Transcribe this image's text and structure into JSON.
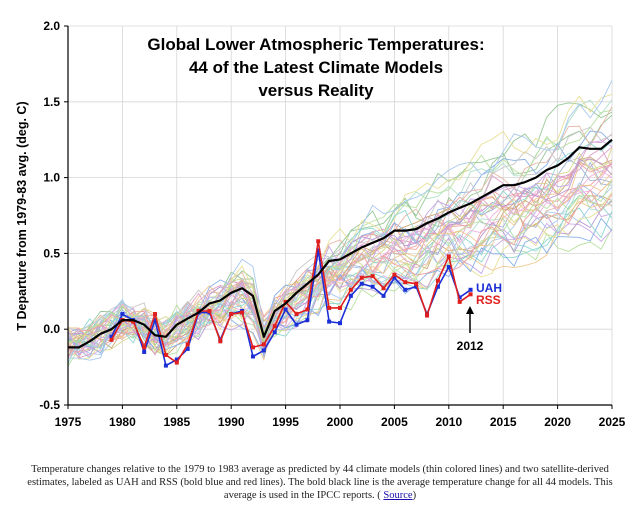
{
  "chart_data": {
    "type": "line",
    "title": [
      "Global Lower Atmospheric Temperatures:",
      "44 of the Latest Climate Models",
      "versus Reality"
    ],
    "ylabel": "T Departure from 1979-83 avg. (deg. C)",
    "xlim": [
      1975,
      2025
    ],
    "ylim": [
      -0.5,
      2.0
    ],
    "x_ticks": [
      "1975",
      "1980",
      "1985",
      "1990",
      "1995",
      "2000",
      "2005",
      "2010",
      "2015",
      "2020",
      "2025"
    ],
    "y_ticks": [
      "-0.5",
      "0.0",
      "0.5",
      "1.0",
      "1.5",
      "2.0"
    ],
    "grid": true,
    "colors": {
      "uah": "#1c2fd6",
      "rss": "#e01e1e",
      "mean": "#000000",
      "axis": "#000000"
    },
    "series": [
      {
        "name": "UAH",
        "color": "#1c2fd6",
        "x": [
          1979,
          1980,
          1981,
          1982,
          1983,
          1984,
          1985,
          1986,
          1987,
          1988,
          1989,
          1990,
          1991,
          1992,
          1993,
          1994,
          1995,
          1996,
          1997,
          1998,
          1999,
          2000,
          2001,
          2002,
          2003,
          2004,
          2005,
          2006,
          2007,
          2008,
          2009,
          2010,
          2011,
          2012
        ],
        "values": [
          -0.05,
          0.1,
          0.06,
          -0.15,
          0.06,
          -0.24,
          -0.2,
          -0.13,
          0.11,
          0.11,
          -0.07,
          0.1,
          0.12,
          -0.18,
          -0.14,
          -0.02,
          0.13,
          0.03,
          0.06,
          0.52,
          0.05,
          0.04,
          0.22,
          0.3,
          0.28,
          0.22,
          0.34,
          0.26,
          0.28,
          0.1,
          0.28,
          0.41,
          0.21,
          0.26
        ]
      },
      {
        "name": "RSS",
        "color": "#e01e1e",
        "x": [
          1979,
          1980,
          1981,
          1982,
          1983,
          1984,
          1985,
          1986,
          1987,
          1988,
          1989,
          1990,
          1991,
          1992,
          1993,
          1994,
          1995,
          1996,
          1997,
          1998,
          1999,
          2000,
          2001,
          2002,
          2003,
          2004,
          2005,
          2006,
          2007,
          2008,
          2009,
          2010,
          2011,
          2012
        ],
        "values": [
          -0.07,
          0.06,
          0.05,
          -0.12,
          0.1,
          -0.17,
          -0.22,
          -0.1,
          0.12,
          0.12,
          -0.08,
          0.1,
          0.11,
          -0.12,
          -0.1,
          0.02,
          0.18,
          0.1,
          0.13,
          0.58,
          0.14,
          0.14,
          0.26,
          0.34,
          0.35,
          0.27,
          0.36,
          0.31,
          0.3,
          0.09,
          0.32,
          0.48,
          0.18,
          0.23
        ]
      },
      {
        "name": "Mean",
        "color": "#000000",
        "x": [
          1975,
          1976,
          1977,
          1978,
          1979,
          1980,
          1981,
          1982,
          1983,
          1984,
          1985,
          1986,
          1987,
          1988,
          1989,
          1990,
          1991,
          1992,
          1993,
          1994,
          1995,
          1996,
          1997,
          1998,
          1999,
          2000,
          2001,
          2002,
          2003,
          2004,
          2005,
          2006,
          2007,
          2008,
          2009,
          2010,
          2011,
          2012,
          2013,
          2014,
          2015,
          2016,
          2017,
          2018,
          2019,
          2020,
          2021,
          2022,
          2023,
          2024,
          2025
        ],
        "values": [
          -0.12,
          -0.12,
          -0.08,
          -0.03,
          0.0,
          0.06,
          0.06,
          0.03,
          -0.04,
          -0.05,
          0.03,
          0.07,
          0.11,
          0.17,
          0.19,
          0.24,
          0.27,
          0.22,
          -0.05,
          0.12,
          0.17,
          0.24,
          0.3,
          0.36,
          0.45,
          0.46,
          0.5,
          0.54,
          0.57,
          0.6,
          0.65,
          0.65,
          0.66,
          0.7,
          0.73,
          0.77,
          0.8,
          0.83,
          0.87,
          0.91,
          0.95,
          0.95,
          0.97,
          1.0,
          1.05,
          1.08,
          1.13,
          1.2,
          1.19,
          1.19,
          1.25
        ]
      }
    ],
    "annotations": [
      {
        "text": "UAH",
        "color": "#1c2fd6"
      },
      {
        "text": "RSS",
        "color": "#e01e1e"
      },
      {
        "text": "2012",
        "color": "#000000"
      }
    ]
  },
  "caption": {
    "text": "Temperature changes relative to the 1979 to 1983 average as predicted by 44 climate models (thin colored lines) and two satellite-derived estimates, labeled as UAH and RSS (bold blue and red lines). The bold black line is the average temperature change for all 44 models. This average is used in the IPCC reports. ( ",
    "link": "Source",
    "after": ")"
  }
}
